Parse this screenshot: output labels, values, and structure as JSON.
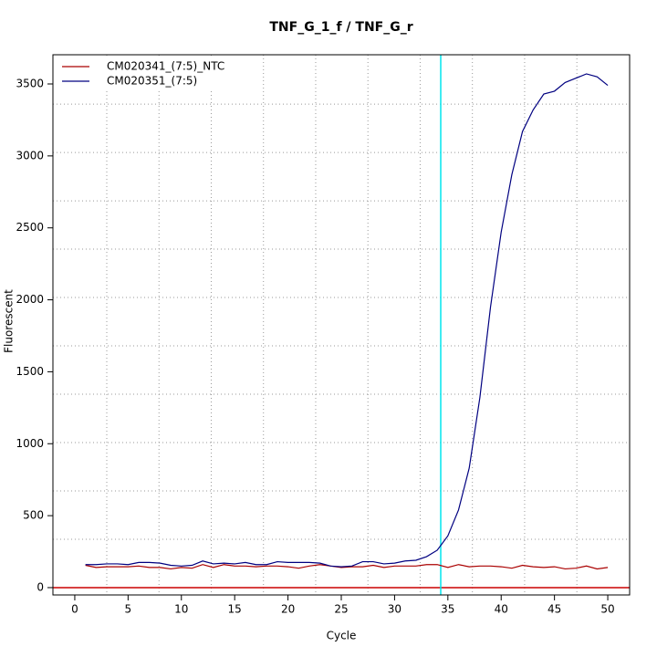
{
  "chart_data": {
    "type": "line",
    "title": "TNF_G_1_f / TNF_G_r",
    "x_label": "Cycle",
    "y_label": "Fluorescent",
    "x": [
      1,
      2,
      3,
      4,
      5,
      6,
      7,
      8,
      9,
      10,
      11,
      12,
      13,
      14,
      15,
      16,
      17,
      18,
      19,
      20,
      21,
      22,
      23,
      24,
      25,
      26,
      27,
      28,
      29,
      30,
      31,
      32,
      33,
      34,
      35,
      36,
      37,
      38,
      39,
      40,
      41,
      42,
      43,
      44,
      45,
      46,
      47,
      48,
      49,
      50
    ],
    "series": [
      {
        "name": "CM020341_(7:5)_NTC",
        "color": "#aa0000",
        "values": [
          155,
          140,
          145,
          145,
          145,
          150,
          140,
          140,
          130,
          140,
          135,
          160,
          140,
          160,
          150,
          150,
          145,
          150,
          150,
          145,
          135,
          150,
          160,
          150,
          140,
          145,
          145,
          155,
          140,
          150,
          150,
          150,
          160,
          160,
          140,
          160,
          145,
          150,
          150,
          145,
          135,
          155,
          145,
          140,
          145,
          130,
          135,
          150,
          130,
          140
        ]
      },
      {
        "name": "CM020351_(7:5)",
        "color": "#000080",
        "values": [
          160,
          160,
          165,
          165,
          160,
          175,
          175,
          170,
          155,
          150,
          155,
          185,
          165,
          170,
          165,
          175,
          160,
          160,
          180,
          175,
          175,
          175,
          170,
          150,
          145,
          150,
          180,
          180,
          165,
          170,
          185,
          190,
          215,
          260,
          360,
          540,
          830,
          1320,
          1950,
          2470,
          2870,
          3170,
          3320,
          3430,
          3450,
          3510,
          3540,
          3570,
          3550,
          3490
        ]
      }
    ],
    "xlim": [
      -2.05,
      52.05
    ],
    "ylim": [
      -51,
      3703
    ],
    "xticks": [
      0,
      5,
      10,
      15,
      20,
      25,
      30,
      35,
      40,
      45,
      50
    ],
    "yticks": [
      0,
      500,
      1000,
      1500,
      2000,
      2500,
      3000,
      3500
    ],
    "xgrid": [
      3,
      7.9,
      12.8,
      17.7,
      22.6,
      27.5,
      32.4,
      37.3,
      42.2,
      47.1
    ],
    "ygrid": [
      336,
      672,
      1008,
      1344,
      1680,
      2016,
      2352,
      2688,
      3024,
      3360
    ],
    "threshold_cycle": 34.33,
    "threshold_value": 0,
    "legend": "top-left"
  }
}
